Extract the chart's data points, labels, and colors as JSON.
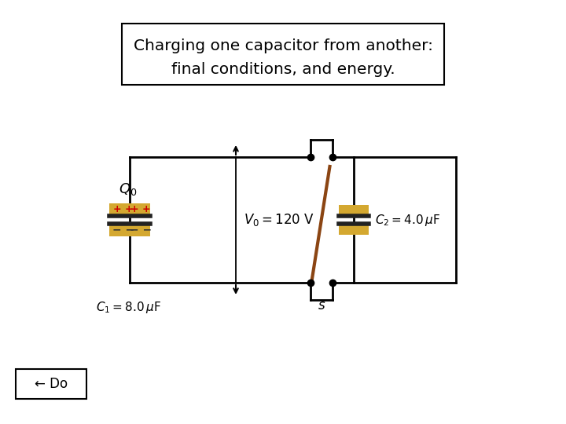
{
  "title_line1": "Charging one capacitor from another:",
  "title_line2": "final conditions, and energy.",
  "bg_color": "#ffffff",
  "cap1_label": "$C_1 = 8.0\\,\\mu$F",
  "cap2_label": "$C_2 = 4.0\\,\\mu$F",
  "V0_label": "$V_0 = 120$ V",
  "Q0_label": "$Q_0$",
  "S_label": "$s$",
  "do_label": "← Do",
  "gold_color": "#D4A830",
  "black": "#000000",
  "switch_color": "#8B4513",
  "plate_dark": "#222222"
}
